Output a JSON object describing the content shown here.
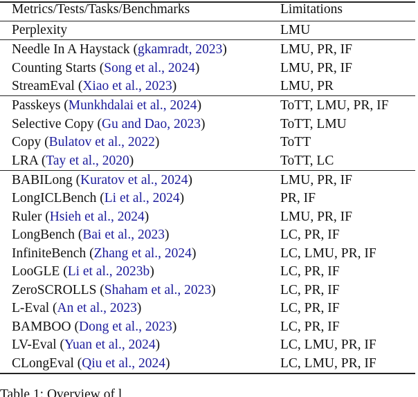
{
  "colors": {
    "citation": "#1c1c9c"
  },
  "table": {
    "headers": [
      "Metrics/Tests/Tasks/Benchmarks",
      "Limitations"
    ],
    "groups": [
      [
        {
          "name": "Perplexity",
          "cite": "",
          "lim": "LMU"
        }
      ],
      [
        {
          "name": "Needle In A Haystack",
          "cite": "gkamradt, 2023",
          "lim": "LMU, PR, IF"
        },
        {
          "name": "Counting Starts",
          "cite": "Song et al., 2024",
          "lim": "LMU, PR, IF"
        },
        {
          "name": "StreamEval",
          "cite": "Xiao et al., 2023",
          "lim": "LMU, PR"
        }
      ],
      [
        {
          "name": "Passkeys",
          "cite": "Munkhdalai et al., 2024",
          "lim": "ToTT, LMU, PR, IF"
        },
        {
          "name": "Selective Copy",
          "cite": "Gu and Dao, 2023",
          "lim": "ToTT, LMU"
        },
        {
          "name": "Copy",
          "cite": "Bulatov et al., 2022",
          "lim": "ToTT"
        },
        {
          "name": "LRA",
          "cite": "Tay et al., 2020",
          "lim": "ToTT, LC"
        }
      ],
      [
        {
          "name": "BABILong",
          "cite": "Kuratov et al., 2024",
          "lim": "LMU, PR, IF"
        },
        {
          "name": "LongICLBench",
          "cite": "Li et al., 2024",
          "lim": "PR, IF"
        },
        {
          "name": "Ruler",
          "cite": "Hsieh et al., 2024",
          "lim": "LMU, PR, IF"
        },
        {
          "name": "LongBench",
          "cite": "Bai et al., 2023",
          "lim": "LC, PR, IF"
        },
        {
          "name": "InfiniteBench",
          "cite": "Zhang et al., 2024",
          "lim": "LC, LMU, PR, IF"
        },
        {
          "name": "LooGLE",
          "cite": "Li et al., 2023b",
          "lim": "LC, PR, IF"
        },
        {
          "name": "ZeroSCROLLS",
          "cite": "Shaham et al., 2023",
          "lim": "LC, PR, IF"
        },
        {
          "name": "L-Eval",
          "cite": "An et al., 2023",
          "lim": "LC, PR, IF"
        },
        {
          "name": "BAMBOO",
          "cite": "Dong et al., 2023",
          "lim": "LC, PR, IF"
        },
        {
          "name": "LV-Eval",
          "cite": "Yuan et al., 2024",
          "lim": "LC, LMU, PR, IF"
        },
        {
          "name": "CLongEval",
          "cite": "Qiu et al., 2024",
          "lim": "LC, LMU, PR, IF"
        }
      ]
    ]
  },
  "caption": "Table 1: Overview of l"
}
